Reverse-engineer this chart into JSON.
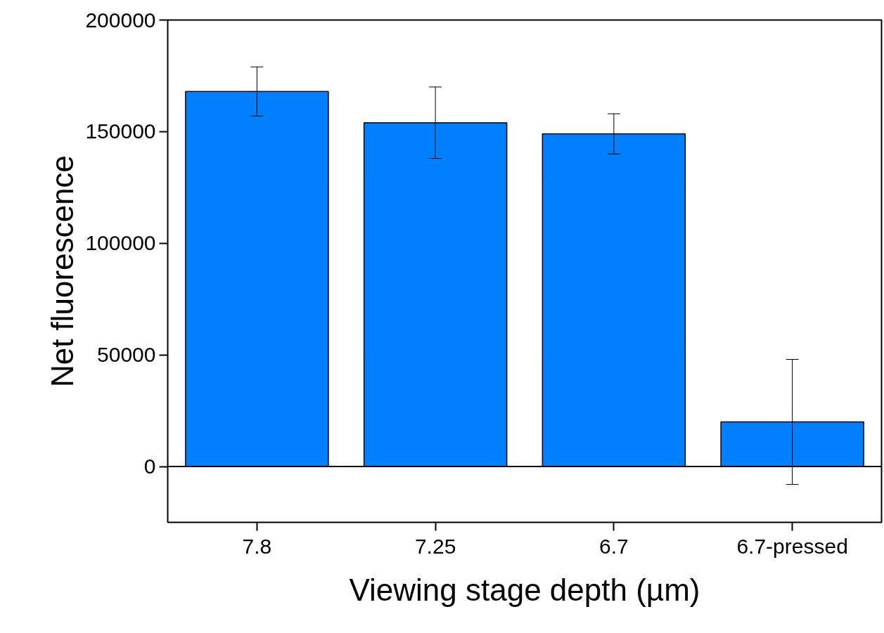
{
  "chart_data": {
    "type": "bar",
    "xlabel": "Viewing stage depth (µm)",
    "ylabel": "Net fluorescence",
    "categories": [
      "7.8",
      "7.25",
      "6.7",
      "6.7-pressed"
    ],
    "values": [
      168000,
      154000,
      149000,
      20000
    ],
    "errors": [
      [
        157000,
        179000
      ],
      [
        138000,
        170000
      ],
      [
        140000,
        158000
      ],
      [
        -8000,
        48000
      ]
    ],
    "color": "#0080ff",
    "ylim": [
      -25000,
      200000
    ],
    "yticks": [
      0,
      50000,
      100000,
      150000,
      200000
    ],
    "ref_lines": [
      {
        "axis": "y",
        "value": 0,
        "color": "#000000"
      }
    ],
    "grid": false
  }
}
